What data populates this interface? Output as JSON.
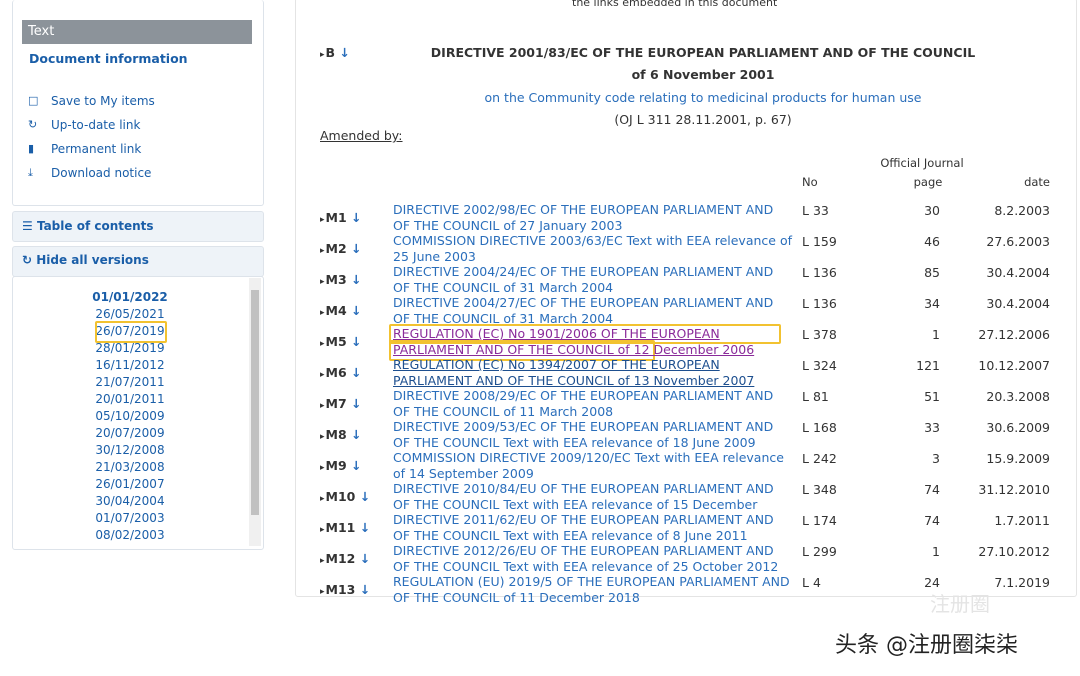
{
  "sidebar": {
    "text_tab": "Text",
    "document_information": "Document information",
    "actions": [
      "Save to My items",
      "Up-to-date link",
      "Permanent link",
      "Download notice"
    ],
    "table_of_contents": "Table of contents",
    "hide_versions": "Hide all versions",
    "versions": [
      "01/01/2022",
      "26/05/2021",
      "26/07/2019",
      "28/01/2019",
      "16/11/2012",
      "21/07/2011",
      "20/01/2011",
      "05/10/2009",
      "20/07/2009",
      "30/12/2008",
      "21/03/2008",
      "26/01/2007",
      "30/04/2004",
      "01/07/2003",
      "08/02/2003"
    ]
  },
  "document": {
    "top_note": "the links embedded in this document",
    "base_marker": "B",
    "title": "DIRECTIVE 2001/83/EC OF THE EUROPEAN PARLIAMENT AND OF THE COUNCIL",
    "date": "of 6 November 2001",
    "subject": "on the Community code relating to medicinal products for human use",
    "oj": "(OJ L 311 28.11.2001, p. 67)",
    "amended_by": "Amended by:",
    "header": {
      "oj": "Official Journal",
      "no": "No",
      "page": "page",
      "date": "date"
    },
    "amendments": [
      [
        "M1",
        "DIRECTIVE 2002/98/EC OF THE EUROPEAN PARLIAMENT AND OF THE COUNCIL of 27 January 2003",
        "L 33",
        "30",
        "8.2.2003"
      ],
      [
        "M2",
        "COMMISSION DIRECTIVE 2003/63/EC Text with EEA relevance of 25 June 2003",
        "L 159",
        "46",
        "27.6.2003"
      ],
      [
        "M3",
        "DIRECTIVE 2004/24/EC OF THE EUROPEAN PARLIAMENT AND OF THE COUNCIL of 31 March 2004",
        "L 136",
        "85",
        "30.4.2004"
      ],
      [
        "M4",
        "DIRECTIVE 2004/27/EC OF THE EUROPEAN PARLIAMENT AND OF THE COUNCIL of 31 March 2004",
        "L 136",
        "34",
        "30.4.2004"
      ],
      [
        "M5",
        "REGULATION (EC) No 1901/2006 OF THE EUROPEAN PARLIAMENT AND OF THE COUNCIL of 12 December 2006",
        "L 378",
        "1",
        "27.12.2006"
      ],
      [
        "M6",
        "REGULATION (EC) No 1394/2007 OF THE EUROPEAN PARLIAMENT AND OF THE COUNCIL of 13 November 2007",
        "L 324",
        "121",
        "10.12.2007"
      ],
      [
        "M7",
        "DIRECTIVE 2008/29/EC OF THE EUROPEAN PARLIAMENT AND OF THE COUNCIL of 11 March 2008",
        "L 81",
        "51",
        "20.3.2008"
      ],
      [
        "M8",
        "DIRECTIVE 2009/53/EC OF THE EUROPEAN PARLIAMENT AND OF THE COUNCIL Text with EEA relevance of 18 June 2009",
        "L 168",
        "33",
        "30.6.2009"
      ],
      [
        "M9",
        "COMMISSION DIRECTIVE 2009/120/EC Text with EEA relevance of 14 September 2009",
        "L 242",
        "3",
        "15.9.2009"
      ],
      [
        "M10",
        "DIRECTIVE 2010/84/EU OF THE EUROPEAN PARLIAMENT AND OF THE COUNCIL Text with EEA relevance of 15 December 2010",
        "L 348",
        "74",
        "31.12.2010"
      ],
      [
        "M11",
        "DIRECTIVE 2011/62/EU OF THE EUROPEAN PARLIAMENT AND OF THE COUNCIL Text with EEA relevance of 8 June 2011",
        "L 174",
        "74",
        "1.7.2011"
      ],
      [
        "M12",
        "DIRECTIVE 2012/26/EU OF THE EUROPEAN PARLIAMENT AND OF THE COUNCIL Text with EEA relevance of 25 October 2012",
        "L 299",
        "1",
        "27.10.2012"
      ],
      [
        "M13",
        "REGULATION (EU) 2019/5 OF THE EUROPEAN PARLIAMENT AND OF THE COUNCIL of 11 December 2018",
        "L 4",
        "24",
        "7.1.2019"
      ]
    ]
  },
  "watermark": "头条 @注册圈柒柒",
  "watermark_faint": "注册圈"
}
